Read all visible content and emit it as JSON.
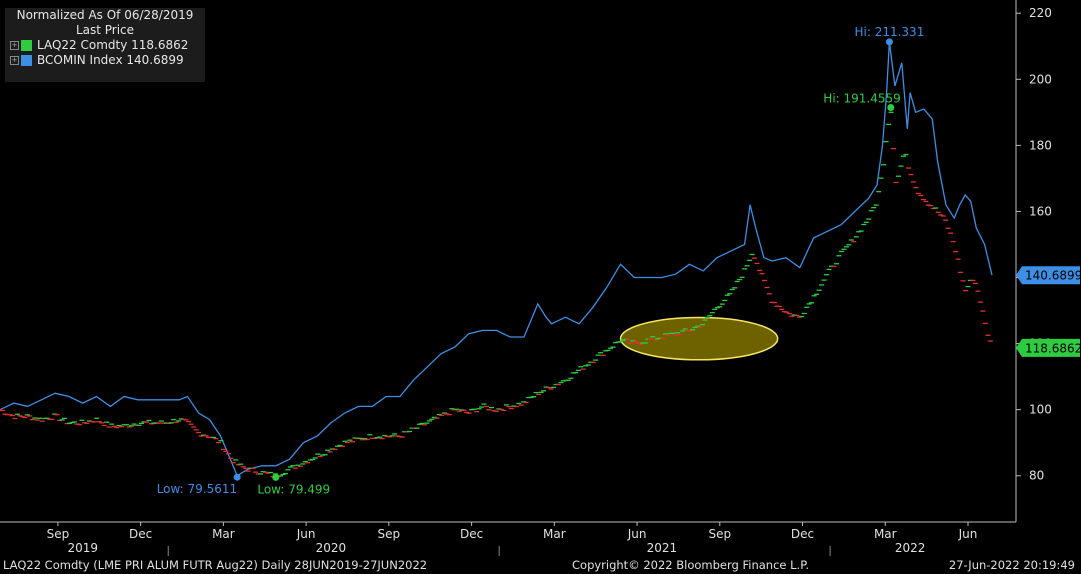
{
  "legend": {
    "title_line1": "Normalized As Of 06/28/2019",
    "title_line2": "Last Price",
    "items": [
      {
        "label": "LAQ22 Comdty 118.6862",
        "color": "#2ecc40"
      },
      {
        "label": "BCOMIN Index 140.6899",
        "color": "#3d8fe6"
      }
    ]
  },
  "footer": {
    "left": "LAQ22 Comdty (LME PRI ALUM FUTR Aug22)  Daily 28JUN2019-27JUN2022",
    "center": "Copyright© 2022 Bloomberg Finance L.P.",
    "right": "27-Jun-2022 20:19:49"
  },
  "chart_data": {
    "type": "line",
    "ylim": [
      66,
      224
    ],
    "yticks": [
      80,
      100,
      120,
      140,
      160,
      180,
      200,
      220
    ],
    "x_months": [
      {
        "label": "Sep",
        "t": 2.1
      },
      {
        "label": "Dec",
        "t": 5.1
      },
      {
        "label": "Mar",
        "t": 8.1
      },
      {
        "label": "Jun",
        "t": 11.1
      },
      {
        "label": "Sep",
        "t": 14.1
      },
      {
        "label": "Dec",
        "t": 17.1
      },
      {
        "label": "Mar",
        "t": 20.1
      },
      {
        "label": "Jun",
        "t": 23.1
      },
      {
        "label": "Sep",
        "t": 26.1
      },
      {
        "label": "Dec",
        "t": 29.1
      },
      {
        "label": "Mar",
        "t": 32.1
      },
      {
        "label": "Jun",
        "t": 35.1
      }
    ],
    "x_years": [
      {
        "label": "2019",
        "t": 3.0
      },
      {
        "label": "2020",
        "t": 12.0
      },
      {
        "label": "2021",
        "t": 24.0
      },
      {
        "label": "2022",
        "t": 33.0
      }
    ],
    "x_range": [
      0,
      35.97
    ],
    "series": [
      {
        "name": "BCOMIN Index",
        "color": "#3d8fe6",
        "last": "140.6899",
        "points": [
          [
            0,
            100
          ],
          [
            0.5,
            102
          ],
          [
            1.0,
            101
          ],
          [
            1.5,
            103
          ],
          [
            2.0,
            105
          ],
          [
            2.5,
            104
          ],
          [
            3.0,
            102
          ],
          [
            3.5,
            104
          ],
          [
            4.0,
            101
          ],
          [
            4.5,
            104
          ],
          [
            5.0,
            103
          ],
          [
            5.5,
            103
          ],
          [
            6.0,
            103
          ],
          [
            6.5,
            103
          ],
          [
            6.8,
            104
          ],
          [
            7.2,
            99
          ],
          [
            7.6,
            97
          ],
          [
            8.0,
            92
          ],
          [
            8.4,
            84
          ],
          [
            8.6,
            80
          ],
          [
            9.0,
            82
          ],
          [
            9.5,
            83
          ],
          [
            10.0,
            83
          ],
          [
            10.5,
            85
          ],
          [
            11.0,
            90
          ],
          [
            11.5,
            92
          ],
          [
            12.0,
            96
          ],
          [
            12.5,
            99
          ],
          [
            13.0,
            101
          ],
          [
            13.5,
            101
          ],
          [
            14.0,
            104
          ],
          [
            14.5,
            104
          ],
          [
            15.0,
            109
          ],
          [
            15.5,
            113
          ],
          [
            16.0,
            117
          ],
          [
            16.5,
            119
          ],
          [
            17.0,
            123
          ],
          [
            17.5,
            124
          ],
          [
            18.0,
            124
          ],
          [
            18.5,
            122
          ],
          [
            19.0,
            122
          ],
          [
            19.5,
            132
          ],
          [
            19.8,
            128
          ],
          [
            20.0,
            126
          ],
          [
            20.5,
            128
          ],
          [
            21.0,
            126
          ],
          [
            21.5,
            131
          ],
          [
            22.0,
            137
          ],
          [
            22.5,
            144
          ],
          [
            23.0,
            140
          ],
          [
            23.5,
            140
          ],
          [
            24.0,
            140
          ],
          [
            24.5,
            141
          ],
          [
            25.0,
            144
          ],
          [
            25.5,
            142
          ],
          [
            26.0,
            146
          ],
          [
            26.5,
            148
          ],
          [
            27.0,
            150
          ],
          [
            27.2,
            162
          ],
          [
            27.4,
            155
          ],
          [
            27.7,
            146
          ],
          [
            28.0,
            145
          ],
          [
            28.5,
            146
          ],
          [
            29.0,
            143
          ],
          [
            29.5,
            152
          ],
          [
            30.0,
            154
          ],
          [
            30.5,
            156
          ],
          [
            31.0,
            160
          ],
          [
            31.5,
            164
          ],
          [
            31.8,
            168
          ],
          [
            32.0,
            180
          ],
          [
            32.15,
            196
          ],
          [
            32.25,
            211.331
          ],
          [
            32.45,
            198
          ],
          [
            32.7,
            205
          ],
          [
            32.9,
            185
          ],
          [
            33.0,
            196
          ],
          [
            33.2,
            190
          ],
          [
            33.5,
            191
          ],
          [
            33.8,
            188
          ],
          [
            34.0,
            175
          ],
          [
            34.3,
            162
          ],
          [
            34.6,
            158
          ],
          [
            34.8,
            162
          ],
          [
            35.0,
            165
          ],
          [
            35.2,
            163
          ],
          [
            35.4,
            155
          ],
          [
            35.7,
            150
          ],
          [
            35.97,
            140.6899
          ]
        ],
        "annotations": [
          {
            "text": "Hi: 211.331",
            "t": 32.25,
            "v": 211.331,
            "pos": "above"
          },
          {
            "text": "Low: 79.5611",
            "t": 8.6,
            "v": 79.5611,
            "pos": "below-left"
          }
        ]
      },
      {
        "name": "LAQ22 Comdty",
        "color": "#2ecc40",
        "down_color": "#e03030",
        "last": "118.6862",
        "points": [
          [
            0,
            100
          ],
          [
            0.5,
            98
          ],
          [
            1.0,
            98
          ],
          [
            1.5,
            97
          ],
          [
            2.0,
            98
          ],
          [
            2.5,
            96
          ],
          [
            3.0,
            96
          ],
          [
            3.5,
            97
          ],
          [
            4.0,
            95
          ],
          [
            4.5,
            95
          ],
          [
            5.0,
            96
          ],
          [
            5.5,
            96
          ],
          [
            6.0,
            96
          ],
          [
            6.5,
            97
          ],
          [
            6.8,
            96
          ],
          [
            7.2,
            93
          ],
          [
            7.6,
            92
          ],
          [
            8.0,
            90
          ],
          [
            8.4,
            85
          ],
          [
            8.7,
            83
          ],
          [
            9.0,
            82
          ],
          [
            9.5,
            81
          ],
          [
            10.0,
            80
          ],
          [
            10.5,
            82
          ],
          [
            11.0,
            84
          ],
          [
            11.5,
            86
          ],
          [
            12.0,
            88
          ],
          [
            12.5,
            90
          ],
          [
            13.0,
            91
          ],
          [
            13.5,
            92
          ],
          [
            14.0,
            92
          ],
          [
            14.5,
            92
          ],
          [
            15.0,
            94
          ],
          [
            15.5,
            96
          ],
          [
            16.0,
            98
          ],
          [
            16.5,
            100
          ],
          [
            17.0,
            99
          ],
          [
            17.5,
            101
          ],
          [
            18.0,
            100
          ],
          [
            18.5,
            101
          ],
          [
            19.0,
            102
          ],
          [
            19.5,
            105
          ],
          [
            20.0,
            107
          ],
          [
            20.5,
            109
          ],
          [
            21.0,
            112
          ],
          [
            21.5,
            115
          ],
          [
            22.0,
            118
          ],
          [
            22.5,
            121
          ],
          [
            23.0,
            120
          ],
          [
            23.5,
            121
          ],
          [
            24.0,
            122
          ],
          [
            24.5,
            123
          ],
          [
            25.0,
            124
          ],
          [
            25.5,
            126
          ],
          [
            26.0,
            131
          ],
          [
            26.5,
            135
          ],
          [
            27.0,
            142
          ],
          [
            27.3,
            148
          ],
          [
            27.6,
            141
          ],
          [
            28.0,
            133
          ],
          [
            28.3,
            131
          ],
          [
            28.6,
            129
          ],
          [
            29.0,
            128
          ],
          [
            29.5,
            134
          ],
          [
            30.0,
            141
          ],
          [
            30.5,
            147
          ],
          [
            31.0,
            152
          ],
          [
            31.5,
            158
          ],
          [
            31.8,
            163
          ],
          [
            32.0,
            172
          ],
          [
            32.15,
            183
          ],
          [
            32.3,
            191.4559
          ],
          [
            32.5,
            168
          ],
          [
            32.8,
            178
          ],
          [
            33.0,
            172
          ],
          [
            33.3,
            166
          ],
          [
            33.6,
            163
          ],
          [
            34.0,
            160
          ],
          [
            34.3,
            157
          ],
          [
            34.6,
            150
          ],
          [
            35.0,
            136
          ],
          [
            35.3,
            140
          ],
          [
            35.5,
            135
          ],
          [
            35.75,
            125
          ],
          [
            35.97,
            118.6862
          ]
        ],
        "annotations": [
          {
            "text": "Hi: 191.4559",
            "t": 32.3,
            "v": 191.4559,
            "pos": "left"
          },
          {
            "text": "Low: 79.499",
            "t": 10.0,
            "v": 79.499,
            "pos": "below"
          }
        ]
      }
    ],
    "highlight_ellipse": {
      "t_center": 25.35,
      "v_center": 121.5,
      "t_radius": 2.85,
      "v_radius": 6.4,
      "color": "#f5e663"
    }
  }
}
